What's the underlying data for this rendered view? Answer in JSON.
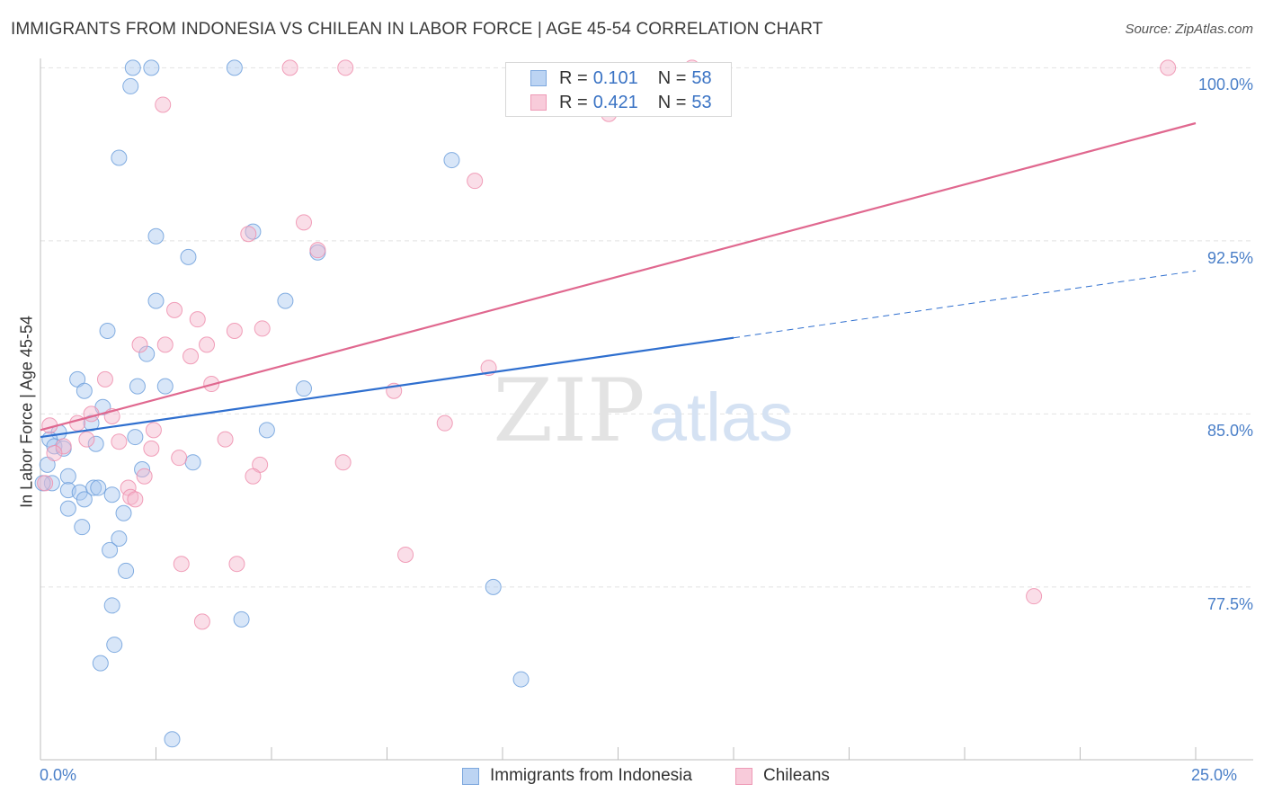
{
  "header": {
    "title": "IMMIGRANTS FROM INDONESIA VS CHILEAN IN LABOR FORCE | AGE 45-54 CORRELATION CHART",
    "source": "Source: ZipAtlas.com"
  },
  "watermark": {
    "zip": "ZIP",
    "atlas": "atlas"
  },
  "legend": {
    "rows": [
      {
        "r_label": "R = ",
        "r_value": "0.101",
        "n_label": "N = ",
        "n_value": "58",
        "color": "#a9c8ef"
      },
      {
        "r_label": "R = ",
        "r_value": "0.421",
        "n_label": "N = ",
        "n_value": "53",
        "color": "#f5b6cb"
      }
    ]
  },
  "chart_data": {
    "type": "scatter",
    "title": "IMMIGRANTS FROM INDONESIA VS CHILEAN IN LABOR FORCE | AGE 45-54 CORRELATION CHART",
    "xlabel": "",
    "ylabel": "In Labor Force | Age 45-54",
    "xlim": [
      0,
      25
    ],
    "ylim": [
      70.6,
      100.6
    ],
    "x_tick_labels": [
      "0.0%",
      "25.0%"
    ],
    "y_ticks": [
      77.5,
      85.0,
      92.5,
      100.0
    ],
    "y_tick_labels": [
      "77.5%",
      "85.0%",
      "92.5%",
      "100.0%"
    ],
    "grid": true,
    "series": [
      {
        "name": "Immigrants from Indonesia",
        "color": "#6fa0dc",
        "fill": "#a9c8ef",
        "trend": {
          "x_start": 0.0,
          "y_start": 84.0,
          "x_end": 15.0,
          "y_end": 88.3,
          "x_dash_end": 25.0,
          "y_dash_end": 91.2
        },
        "points": [
          [
            2.0,
            100.0
          ],
          [
            2.4,
            100.0
          ],
          [
            4.2,
            100.0
          ],
          [
            1.95,
            99.2
          ],
          [
            1.7,
            96.1
          ],
          [
            8.9,
            96.0
          ],
          [
            2.5,
            92.7
          ],
          [
            4.6,
            92.9
          ],
          [
            3.2,
            91.8
          ],
          [
            6.0,
            92.0
          ],
          [
            2.5,
            89.9
          ],
          [
            5.3,
            89.9
          ],
          [
            1.45,
            88.6
          ],
          [
            2.3,
            87.6
          ],
          [
            0.8,
            86.5
          ],
          [
            0.95,
            86.0
          ],
          [
            2.1,
            86.2
          ],
          [
            2.7,
            86.2
          ],
          [
            5.7,
            86.1
          ],
          [
            1.35,
            85.3
          ],
          [
            1.1,
            84.6
          ],
          [
            4.9,
            84.3
          ],
          [
            0.4,
            84.2
          ],
          [
            0.2,
            83.9
          ],
          [
            0.3,
            83.6
          ],
          [
            0.5,
            83.5
          ],
          [
            1.2,
            83.7
          ],
          [
            2.05,
            84.0
          ],
          [
            0.15,
            82.8
          ],
          [
            0.6,
            82.3
          ],
          [
            2.2,
            82.6
          ],
          [
            3.3,
            82.9
          ],
          [
            0.25,
            82.0
          ],
          [
            0.05,
            82.0
          ],
          [
            0.6,
            81.7
          ],
          [
            0.85,
            81.6
          ],
          [
            1.15,
            81.8
          ],
          [
            1.25,
            81.8
          ],
          [
            1.55,
            81.5
          ],
          [
            0.95,
            81.3
          ],
          [
            0.6,
            80.9
          ],
          [
            1.8,
            80.7
          ],
          [
            0.9,
            80.1
          ],
          [
            1.7,
            79.6
          ],
          [
            1.5,
            79.1
          ],
          [
            1.85,
            78.2
          ],
          [
            9.8,
            77.5
          ],
          [
            1.55,
            76.7
          ],
          [
            4.35,
            76.1
          ],
          [
            1.6,
            75.0
          ],
          [
            1.3,
            74.2
          ],
          [
            10.4,
            73.5
          ],
          [
            2.85,
            70.9
          ]
        ]
      },
      {
        "name": "Chileans",
        "color": "#ee8fae",
        "fill": "#f5b6cb",
        "trend": {
          "x_start": 0.0,
          "y_start": 84.3,
          "x_end": 25.0,
          "y_end": 97.6
        },
        "points": [
          [
            5.4,
            100.0
          ],
          [
            6.6,
            100.0
          ],
          [
            14.1,
            100.0
          ],
          [
            24.4,
            100.0
          ],
          [
            2.65,
            98.4
          ],
          [
            12.3,
            98.0
          ],
          [
            9.4,
            95.1
          ],
          [
            5.7,
            93.3
          ],
          [
            4.5,
            92.8
          ],
          [
            6.0,
            92.1
          ],
          [
            2.9,
            89.5
          ],
          [
            3.4,
            89.1
          ],
          [
            4.2,
            88.6
          ],
          [
            4.8,
            88.7
          ],
          [
            2.15,
            88.0
          ],
          [
            2.7,
            88.0
          ],
          [
            3.6,
            88.0
          ],
          [
            3.25,
            87.5
          ],
          [
            9.7,
            87.0
          ],
          [
            1.4,
            86.5
          ],
          [
            3.7,
            86.3
          ],
          [
            7.65,
            86.0
          ],
          [
            1.1,
            85.0
          ],
          [
            1.55,
            84.9
          ],
          [
            0.8,
            84.6
          ],
          [
            0.2,
            84.5
          ],
          [
            8.75,
            84.6
          ],
          [
            2.45,
            84.3
          ],
          [
            1.0,
            83.9
          ],
          [
            1.7,
            83.8
          ],
          [
            4.0,
            83.9
          ],
          [
            0.5,
            83.6
          ],
          [
            2.4,
            83.5
          ],
          [
            0.3,
            83.3
          ],
          [
            3.0,
            83.1
          ],
          [
            6.55,
            82.9
          ],
          [
            4.75,
            82.8
          ],
          [
            4.6,
            82.3
          ],
          [
            2.25,
            82.3
          ],
          [
            0.1,
            82.0
          ],
          [
            1.9,
            81.8
          ],
          [
            1.95,
            81.4
          ],
          [
            2.05,
            81.3
          ],
          [
            7.9,
            78.9
          ],
          [
            3.05,
            78.5
          ],
          [
            4.25,
            78.5
          ],
          [
            21.5,
            77.1
          ],
          [
            3.5,
            76.0
          ]
        ]
      }
    ],
    "watermark": "ZIPatlas"
  },
  "bottom_legend": [
    {
      "label": "Immigrants from Indonesia",
      "color": "#a9c8ef"
    },
    {
      "label": "Chileans",
      "color": "#f5b6cb"
    }
  ]
}
